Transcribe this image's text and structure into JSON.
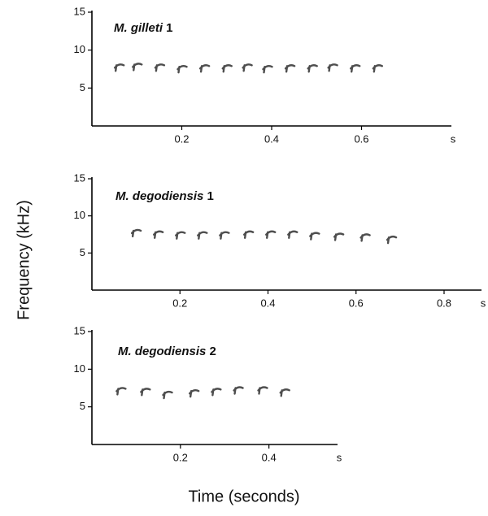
{
  "y_axis_label": "Frequency (kHz)",
  "x_axis_label": "Time (seconds)",
  "chart_data": [
    {
      "type": "spectrogram",
      "title_species": "M. gilleti",
      "title_number": "1",
      "x_unit": "s",
      "x": [
        0.06,
        0.1,
        0.15,
        0.2,
        0.25,
        0.3,
        0.345,
        0.39,
        0.44,
        0.49,
        0.535,
        0.585,
        0.635
      ],
      "values": [
        8,
        8.1,
        8,
        7.8,
        7.9,
        7.9,
        8,
        7.8,
        7.9,
        7.9,
        8,
        7.9,
        7.9
      ],
      "xlim": [
        0,
        0.8
      ],
      "xticks": [
        0.2,
        0.4,
        0.6
      ],
      "ylim": [
        0,
        15
      ],
      "yticks": [
        5,
        10,
        15
      ]
    },
    {
      "type": "spectrogram",
      "title_species": "M. degodiensis",
      "title_number": "1",
      "x_unit": "s",
      "x": [
        0.1,
        0.15,
        0.2,
        0.25,
        0.3,
        0.355,
        0.405,
        0.455,
        0.505,
        0.56,
        0.62,
        0.68
      ],
      "values": [
        8,
        7.8,
        7.7,
        7.7,
        7.7,
        7.8,
        7.8,
        7.8,
        7.6,
        7.5,
        7.4,
        7.1
      ],
      "xlim": [
        0,
        0.885
      ],
      "xticks": [
        0.2,
        0.4,
        0.6,
        0.8
      ],
      "ylim": [
        0,
        15
      ],
      "yticks": [
        5,
        10,
        15
      ]
    },
    {
      "type": "spectrogram",
      "title_species": "M. degodiensis",
      "title_number": "2",
      "x_unit": "s",
      "x": [
        0.065,
        0.12,
        0.17,
        0.23,
        0.28,
        0.33,
        0.385,
        0.435
      ],
      "values": [
        7.4,
        7.3,
        6.9,
        7.1,
        7.3,
        7.5,
        7.5,
        7.2
      ],
      "xlim": [
        0,
        0.555
      ],
      "xticks": [
        0.2,
        0.4
      ],
      "ylim": [
        0,
        15
      ],
      "yticks": [
        5,
        10,
        15
      ]
    }
  ]
}
